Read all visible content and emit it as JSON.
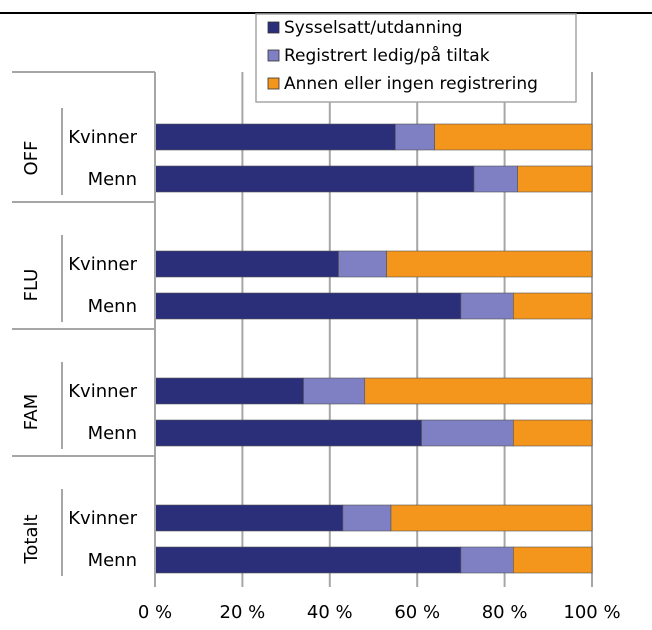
{
  "chart_data": {
    "type": "bar",
    "orientation": "horizontal",
    "stacked": true,
    "groups": [
      "OFF",
      "FLU",
      "FAM",
      "Totalt"
    ],
    "categories": [
      {
        "group": "OFF",
        "label": "Kvinner"
      },
      {
        "group": "OFF",
        "label": "Menn"
      },
      {
        "group": "FLU",
        "label": "Kvinner"
      },
      {
        "group": "FLU",
        "label": "Menn"
      },
      {
        "group": "FAM",
        "label": "Kvinner"
      },
      {
        "group": "FAM",
        "label": "Menn"
      },
      {
        "group": "Totalt",
        "label": "Kvinner"
      },
      {
        "group": "Totalt",
        "label": "Menn"
      }
    ],
    "series": [
      {
        "name": "Sysselsatt/utdanning",
        "color": "#2b2f7a",
        "values": [
          55,
          73,
          42,
          70,
          34,
          61,
          43,
          70
        ]
      },
      {
        "name": "Registrert ledig/på tiltak",
        "color": "#7f7fc4",
        "values": [
          9,
          10,
          11,
          12,
          14,
          21,
          11,
          12
        ]
      },
      {
        "name": "Annen eller ingen registrering",
        "color": "#f5961c",
        "values": [
          36,
          17,
          47,
          18,
          52,
          18,
          46,
          18
        ]
      }
    ],
    "xlim": [
      0,
      100
    ],
    "xticks": [
      "0 %",
      "20 %",
      "40 %",
      "60 %",
      "80 %",
      "100 %"
    ],
    "grid": "vertical",
    "legend_position": "top-right"
  }
}
